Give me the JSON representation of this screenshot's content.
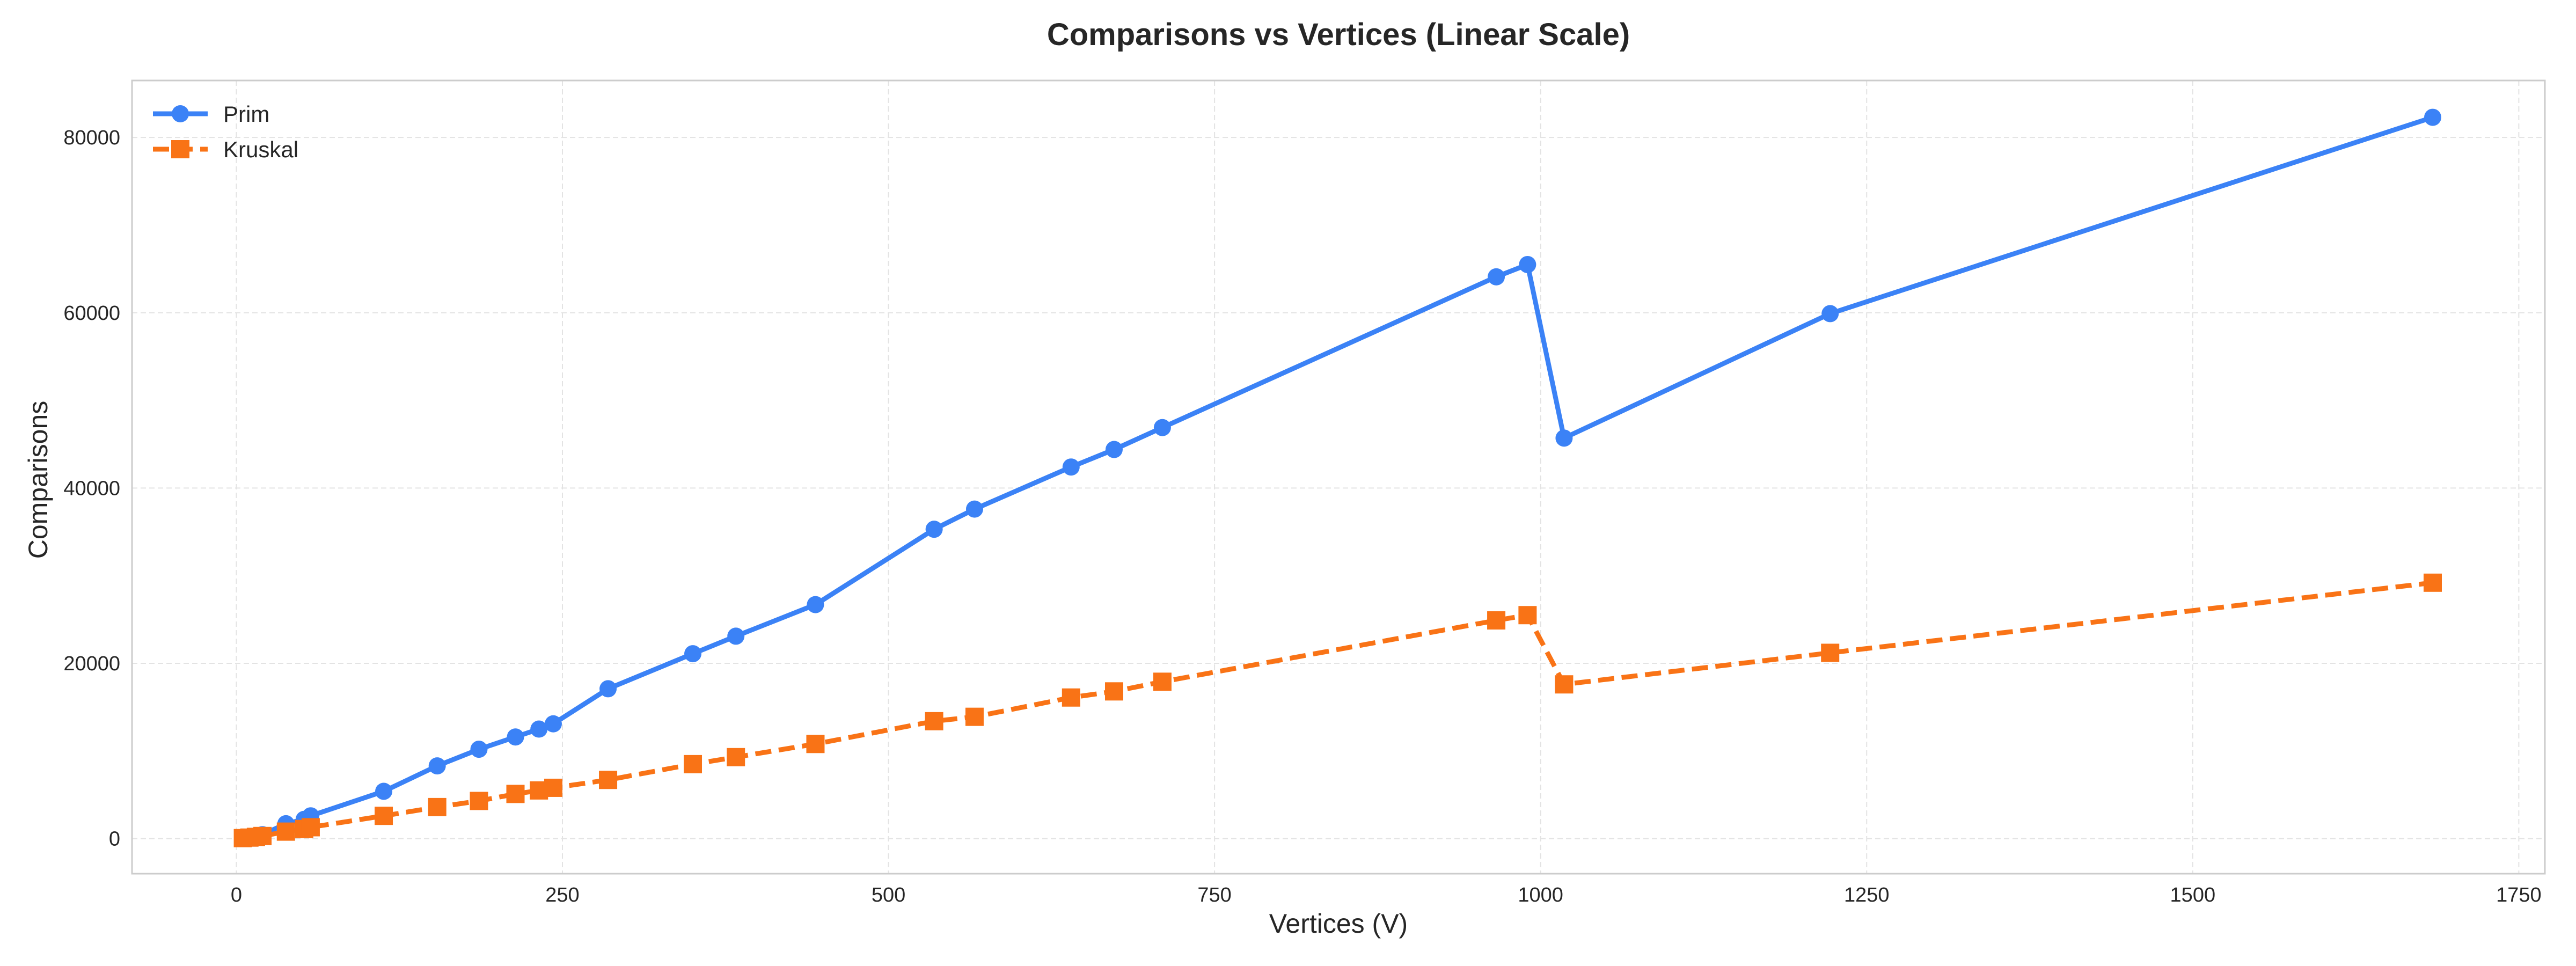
{
  "chart_data": {
    "type": "line",
    "title": "Comparisons vs Vertices (Linear Scale)",
    "xlabel": "Vertices (V)",
    "ylabel": "Comparisons",
    "xlim": [
      -80,
      1770
    ],
    "ylim": [
      -4000,
      86500
    ],
    "xticks": [
      0,
      250,
      500,
      750,
      1000,
      1250,
      1500,
      1750
    ],
    "yticks": [
      0,
      20000,
      40000,
      60000,
      80000
    ],
    "grid": true,
    "legend_position": "top-left",
    "series": [
      {
        "name": "Prim",
        "color": "#3b82f6",
        "marker": "circle",
        "line_style": "solid",
        "x": [
          5,
          10,
          15,
          20,
          38,
          52,
          57,
          113,
          154,
          186,
          214,
          232,
          243,
          285,
          350,
          383,
          444,
          535,
          566,
          640,
          673,
          710,
          966,
          990,
          1018,
          1222,
          1684
        ],
        "y": [
          80,
          180,
          300,
          450,
          1700,
          2200,
          2600,
          5400,
          8300,
          10200,
          11600,
          12500,
          13100,
          17100,
          21100,
          23100,
          26700,
          35300,
          37600,
          42400,
          44400,
          46900,
          64100,
          65500,
          45700,
          59900,
          82300
        ]
      },
      {
        "name": "Kruskal",
        "color": "#f97316",
        "marker": "square",
        "line_style": "dashed",
        "x": [
          5,
          10,
          15,
          20,
          38,
          52,
          57,
          113,
          154,
          186,
          214,
          232,
          243,
          285,
          350,
          383,
          444,
          535,
          566,
          640,
          673,
          710,
          966,
          990,
          1018,
          1222,
          1684
        ],
        "y": [
          60,
          120,
          200,
          300,
          800,
          1100,
          1300,
          2600,
          3600,
          4300,
          5100,
          5500,
          5800,
          6700,
          8500,
          9300,
          10800,
          13400,
          13900,
          16100,
          16800,
          17900,
          24900,
          25500,
          17600,
          21200,
          29200
        ]
      }
    ]
  }
}
